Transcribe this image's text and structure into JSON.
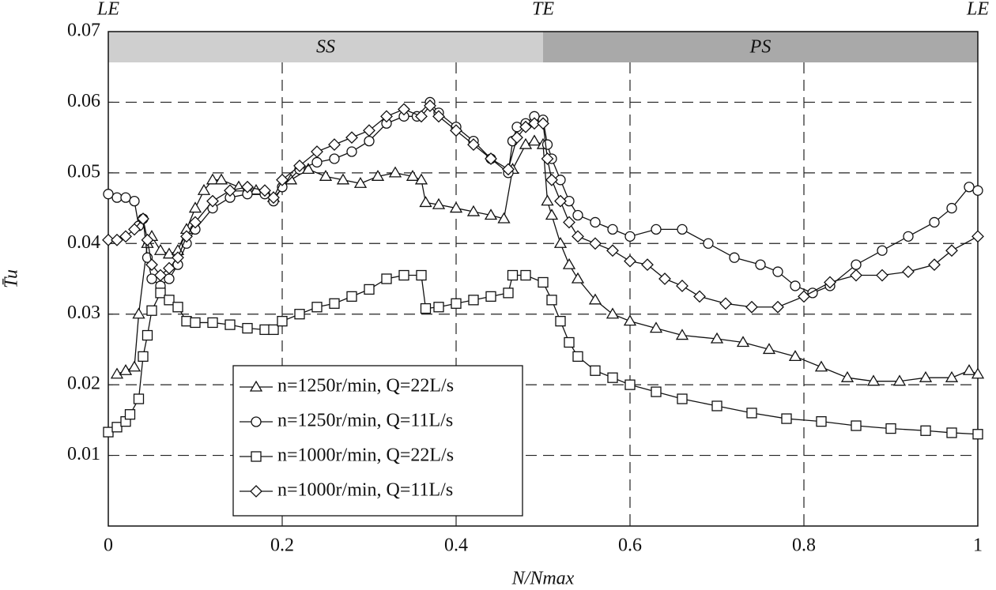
{
  "chart_data": {
    "type": "line",
    "x_label": "N/Nmax",
    "y_label": "T̄u",
    "xlim": [
      0,
      1
    ],
    "ylim": [
      0,
      0.07
    ],
    "xticks": [
      0,
      0.2,
      0.4,
      0.6,
      0.8,
      1
    ],
    "yticks": [
      0.01,
      0.02,
      0.03,
      0.04,
      0.05,
      0.06,
      0.07
    ],
    "grid": true,
    "legend": "lower left",
    "regions": [
      {
        "label": "SS",
        "x": [
          0,
          0.5
        ],
        "color": "#cfcfcf"
      },
      {
        "label": "PS",
        "x": [
          0.5,
          1
        ],
        "color": "#a9a9a9"
      }
    ],
    "top_labels": [
      {
        "label": "LE",
        "x": 0
      },
      {
        "label": "TE",
        "x": 0.5
      },
      {
        "label": "LE",
        "x": 1
      }
    ],
    "series": [
      {
        "name": "n=1250r/min, Q=22L/s",
        "color": "#111111",
        "marker": "triangle",
        "x": [
          0.01,
          0.02,
          0.03,
          0.035,
          0.045,
          0.05,
          0.06,
          0.07,
          0.08,
          0.09,
          0.1,
          0.11,
          0.12,
          0.13,
          0.15,
          0.17,
          0.19,
          0.21,
          0.23,
          0.25,
          0.27,
          0.29,
          0.31,
          0.33,
          0.35,
          0.36,
          0.365,
          0.38,
          0.4,
          0.42,
          0.44,
          0.455,
          0.465,
          0.48,
          0.49,
          0.5,
          0.505,
          0.51,
          0.52,
          0.53,
          0.54,
          0.56,
          0.58,
          0.6,
          0.63,
          0.66,
          0.7,
          0.73,
          0.76,
          0.79,
          0.82,
          0.85,
          0.88,
          0.91,
          0.94,
          0.97,
          0.99,
          1
        ],
        "values": [
          0.0215,
          0.022,
          0.0225,
          0.03,
          0.04,
          0.041,
          0.039,
          0.0385,
          0.039,
          0.042,
          0.045,
          0.0475,
          0.049,
          0.049,
          0.048,
          0.0475,
          0.0465,
          0.049,
          0.0505,
          0.0495,
          0.049,
          0.0485,
          0.0495,
          0.05,
          0.0495,
          0.049,
          0.0458,
          0.0455,
          0.045,
          0.0445,
          0.044,
          0.0435,
          0.0505,
          0.054,
          0.0545,
          0.054,
          0.046,
          0.044,
          0.04,
          0.037,
          0.035,
          0.032,
          0.03,
          0.029,
          0.028,
          0.027,
          0.0265,
          0.026,
          0.025,
          0.024,
          0.0225,
          0.021,
          0.0205,
          0.0205,
          0.021,
          0.021,
          0.022,
          0.0215
        ]
      },
      {
        "name": "n=1250r/min, Q=11L/s",
        "color": "#111111",
        "marker": "circle",
        "x": [
          0,
          0.01,
          0.02,
          0.03,
          0.035,
          0.04,
          0.045,
          0.05,
          0.06,
          0.07,
          0.08,
          0.09,
          0.1,
          0.12,
          0.14,
          0.16,
          0.18,
          0.19,
          0.2,
          0.22,
          0.24,
          0.26,
          0.28,
          0.3,
          0.32,
          0.34,
          0.355,
          0.37,
          0.38,
          0.4,
          0.42,
          0.44,
          0.46,
          0.465,
          0.47,
          0.48,
          0.49,
          0.5,
          0.505,
          0.51,
          0.52,
          0.53,
          0.54,
          0.56,
          0.58,
          0.6,
          0.63,
          0.66,
          0.69,
          0.72,
          0.75,
          0.77,
          0.79,
          0.81,
          0.83,
          0.86,
          0.89,
          0.92,
          0.95,
          0.97,
          0.99,
          1
        ],
        "values": [
          0.047,
          0.0465,
          0.0465,
          0.046,
          0.0425,
          0.0435,
          0.038,
          0.035,
          0.034,
          0.035,
          0.037,
          0.04,
          0.042,
          0.045,
          0.0465,
          0.047,
          0.047,
          0.046,
          0.048,
          0.0505,
          0.0515,
          0.052,
          0.053,
          0.0545,
          0.057,
          0.058,
          0.058,
          0.06,
          0.0585,
          0.0565,
          0.0545,
          0.052,
          0.05,
          0.0545,
          0.0565,
          0.057,
          0.058,
          0.0575,
          0.054,
          0.052,
          0.049,
          0.046,
          0.044,
          0.043,
          0.042,
          0.041,
          0.042,
          0.042,
          0.04,
          0.038,
          0.037,
          0.036,
          0.034,
          0.033,
          0.034,
          0.037,
          0.039,
          0.041,
          0.043,
          0.045,
          0.048,
          0.0475
        ]
      },
      {
        "name": "n=1000r/min, Q=22L/s",
        "color": "#111111",
        "marker": "square",
        "x": [
          0,
          0.01,
          0.02,
          0.025,
          0.035,
          0.04,
          0.045,
          0.05,
          0.06,
          0.07,
          0.08,
          0.09,
          0.1,
          0.12,
          0.14,
          0.16,
          0.18,
          0.19,
          0.2,
          0.22,
          0.24,
          0.26,
          0.28,
          0.3,
          0.32,
          0.34,
          0.36,
          0.365,
          0.38,
          0.4,
          0.42,
          0.44,
          0.46,
          0.465,
          0.48,
          0.5,
          0.51,
          0.52,
          0.53,
          0.54,
          0.56,
          0.58,
          0.6,
          0.63,
          0.66,
          0.7,
          0.74,
          0.78,
          0.82,
          0.86,
          0.9,
          0.94,
          0.97,
          1
        ],
        "values": [
          0.0133,
          0.014,
          0.0148,
          0.0158,
          0.018,
          0.024,
          0.027,
          0.0305,
          0.033,
          0.032,
          0.031,
          0.029,
          0.0288,
          0.0288,
          0.0285,
          0.028,
          0.0278,
          0.0278,
          0.029,
          0.03,
          0.031,
          0.0315,
          0.0325,
          0.0335,
          0.035,
          0.0355,
          0.0355,
          0.0308,
          0.031,
          0.0315,
          0.032,
          0.0325,
          0.033,
          0.0355,
          0.0355,
          0.0345,
          0.032,
          0.029,
          0.026,
          0.024,
          0.022,
          0.021,
          0.02,
          0.019,
          0.018,
          0.017,
          0.016,
          0.0152,
          0.0148,
          0.0142,
          0.0138,
          0.0135,
          0.0132,
          0.013
        ]
      },
      {
        "name": "n=1000r/min, Q=11L/s",
        "color": "#111111",
        "marker": "diamond",
        "x": [
          0,
          0.01,
          0.02,
          0.03,
          0.04,
          0.045,
          0.05,
          0.06,
          0.07,
          0.08,
          0.09,
          0.1,
          0.12,
          0.14,
          0.16,
          0.18,
          0.19,
          0.2,
          0.22,
          0.24,
          0.26,
          0.28,
          0.3,
          0.32,
          0.34,
          0.36,
          0.37,
          0.38,
          0.4,
          0.42,
          0.44,
          0.46,
          0.47,
          0.48,
          0.49,
          0.5,
          0.505,
          0.51,
          0.52,
          0.53,
          0.54,
          0.56,
          0.58,
          0.6,
          0.62,
          0.64,
          0.66,
          0.68,
          0.71,
          0.74,
          0.77,
          0.8,
          0.83,
          0.86,
          0.89,
          0.92,
          0.95,
          0.97,
          1
        ],
        "values": [
          0.0405,
          0.0405,
          0.041,
          0.042,
          0.0435,
          0.0405,
          0.037,
          0.0355,
          0.0365,
          0.038,
          0.041,
          0.043,
          0.046,
          0.0475,
          0.048,
          0.0475,
          0.0465,
          0.049,
          0.051,
          0.053,
          0.054,
          0.055,
          0.056,
          0.058,
          0.059,
          0.058,
          0.0595,
          0.058,
          0.056,
          0.054,
          0.052,
          0.0505,
          0.055,
          0.0565,
          0.057,
          0.057,
          0.052,
          0.049,
          0.046,
          0.043,
          0.041,
          0.04,
          0.039,
          0.0375,
          0.037,
          0.035,
          0.034,
          0.0325,
          0.0315,
          0.031,
          0.031,
          0.0325,
          0.0345,
          0.0355,
          0.0355,
          0.036,
          0.037,
          0.039,
          0.041
        ]
      }
    ]
  }
}
